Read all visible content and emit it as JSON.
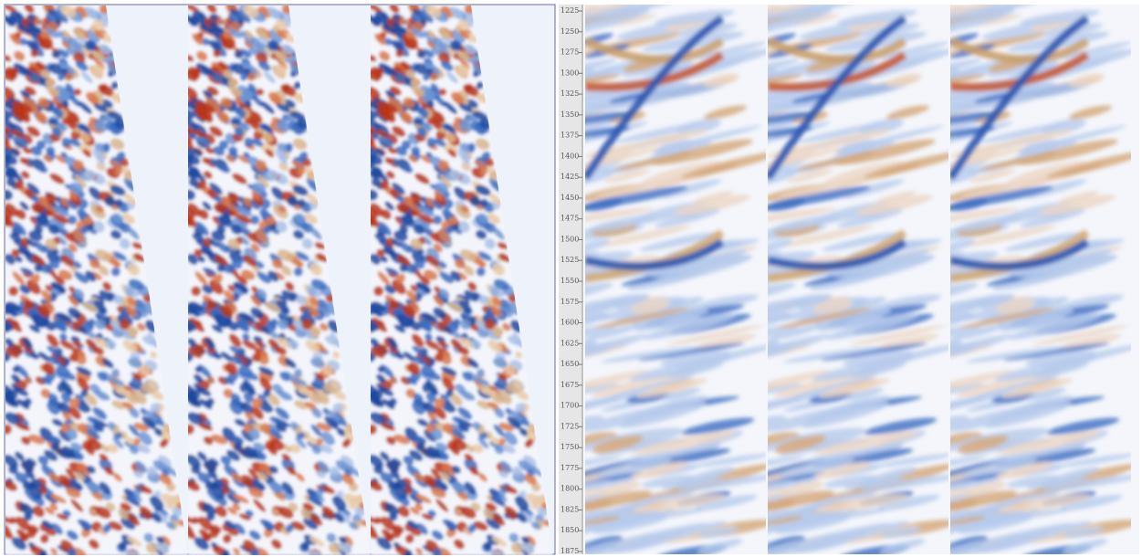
{
  "depth_axis": {
    "ticks": [
      1225,
      1250,
      1275,
      1300,
      1325,
      1350,
      1375,
      1400,
      1425,
      1450,
      1475,
      1500,
      1525,
      1550,
      1575,
      1600,
      1625,
      1650,
      1675,
      1700,
      1725,
      1750,
      1775,
      1800,
      1825,
      1850,
      1875
    ]
  }
}
